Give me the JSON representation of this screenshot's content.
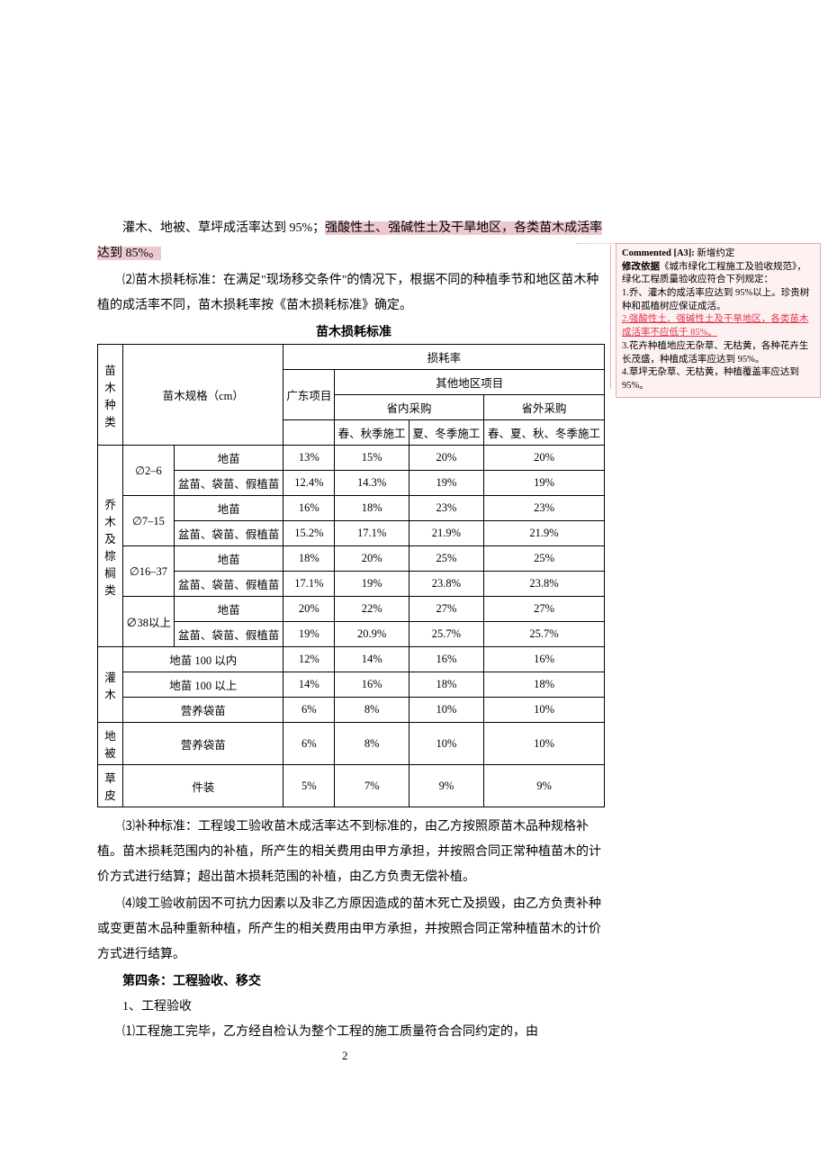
{
  "body": {
    "p1a": "灌木、地被、草坪成活率达到 95%；",
    "p1b": "强酸性土、强碱性土及干旱地区，各类苗木成活率达到 85%。",
    "p2": "⑵苗木损耗标准：在满足\"现场移交条件\"的情况下，根据不同的种植季节和地区苗木种植的成活率不同，苗木损耗率按《苗木损耗标准》确定。",
    "table_title": "苗木损耗标准",
    "p3": "⑶补种标准：工程竣工验收苗木成活率达不到标准的，由乙方按照原苗木品种规格补植。苗木损耗范围内的补植，所产生的相关费用由甲方承担，并按照合同正常种植苗木的计价方式进行结算；超出苗木损耗范围的补植，由乙方负责无偿补植。",
    "p4": "⑷竣工验收前因不可抗力因素以及非乙方原因造成的苗木死亡及损毁，由乙方负责补种或变更苗木品种重新种植，所产生的相关费用由甲方承担，并按照合同正常种植苗木的计价方式进行结算。",
    "sect4": "第四条：工程验收、移交",
    "s4_1": "1、工程验收",
    "s4_1_1": "⑴工程施工完毕，乙方经自检认为整个工程的施工质量符合合同约定的，由"
  },
  "table": {
    "headers": {
      "h1": "苗木种类",
      "h2": "苗木规格（cm）",
      "h3": "损耗率",
      "h4": "广东项目",
      "h5": "其他地区项目",
      "h6": "省内采购",
      "h7": "省外采购",
      "h8": "春、秋季施工",
      "h9": "夏、冬季施工",
      "h10": "春、夏、秋、冬季施工"
    },
    "cat1": "乔木及棕榈类",
    "spec1": "∅2–6",
    "spec2": "∅7–15",
    "spec3": "∅16–37",
    "spec4": "∅38以上",
    "type_a": "地苗",
    "type_b": "盆苗、袋苗、假植苗",
    "r1": [
      "13%",
      "15%",
      "20%",
      "20%"
    ],
    "r2": [
      "12.4%",
      "14.3%",
      "19%",
      "19%"
    ],
    "r3": [
      "16%",
      "18%",
      "23%",
      "23%"
    ],
    "r4": [
      "15.2%",
      "17.1%",
      "21.9%",
      "21.9%"
    ],
    "r5": [
      "18%",
      "20%",
      "25%",
      "25%"
    ],
    "r6": [
      "17.1%",
      "19%",
      "23.8%",
      "23.8%"
    ],
    "r7": [
      "20%",
      "22%",
      "27%",
      "27%"
    ],
    "r8": [
      "19%",
      "20.9%",
      "25.7%",
      "25.7%"
    ],
    "cat2": "灌木",
    "g1": "地苗 100 以内",
    "g2": "地苗 100 以上",
    "g3": "营养袋苗",
    "gr1": [
      "12%",
      "14%",
      "16%",
      "16%"
    ],
    "gr2": [
      "14%",
      "16%",
      "18%",
      "18%"
    ],
    "gr3": [
      "6%",
      "8%",
      "10%",
      "10%"
    ],
    "cat3": "地被",
    "db1": "营养袋苗",
    "dbr": [
      "6%",
      "8%",
      "10%",
      "10%"
    ],
    "cat4": "草皮",
    "cp1": "件装",
    "cpr": [
      "5%",
      "7%",
      "9%",
      "9%"
    ]
  },
  "comment": {
    "tag": "Commented [A3]:",
    "tag2": " 新增约定",
    "l1a": "修改依据",
    "l1b": "《城市绿化工程施工及验收规范》，绿化工程质量验收应符合下列规定：",
    "l2": "1.乔、灌木的成活率应达到 95%以上。珍贵树种和孤植树应保证成活。",
    "l3": "2.强酸性土、强碱性土及干旱地区，各类苗木成活率不应低于 85%。",
    "l4": "3.花卉种植地应无杂草、无枯黄，各种花卉生长茂盛，种植成活率应达到 95%。",
    "l5": "4.草坪无杂草、无枯黄，种植覆盖率应达到 95%。"
  },
  "pagenum": "2"
}
